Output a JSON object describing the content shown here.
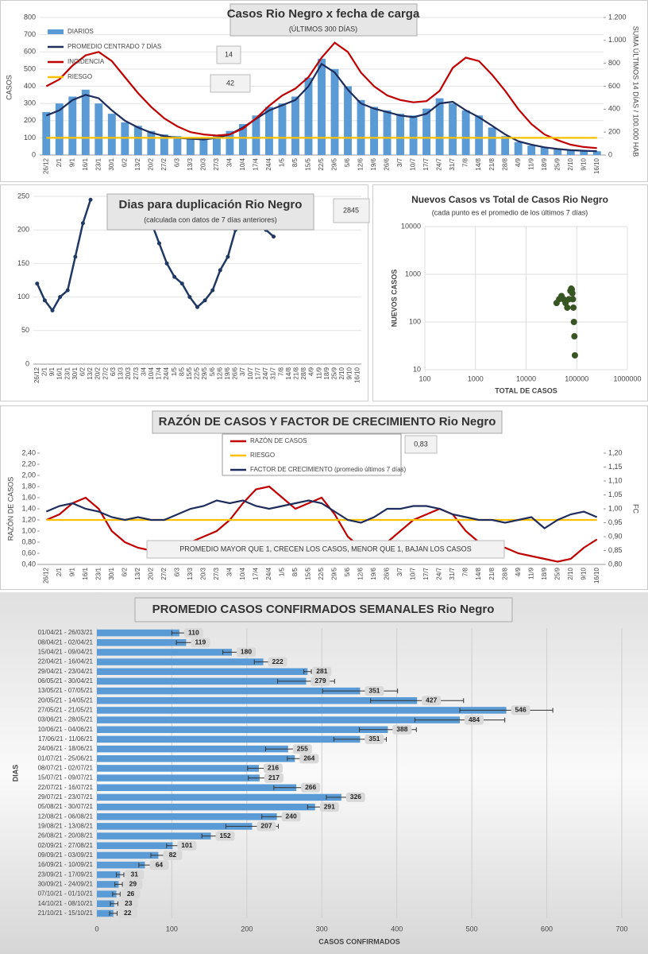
{
  "chart_data": [
    {
      "type": "combo",
      "title": "Casos Rio Negro x fecha de carga",
      "subtitle": "(ÚLTIMOS 300 DÍAS)",
      "ylabel": "CASOS",
      "y2label": "SUMA ÚLTIMOS 14 DÍAS / 100.000 HAB",
      "annotations": [
        "14",
        "42"
      ],
      "legend": "upper left",
      "grid": true,
      "categories": [
        "26/12",
        "2/1",
        "9/1",
        "16/1",
        "23/1",
        "30/1",
        "6/2",
        "13/2",
        "20/2",
        "27/2",
        "6/3",
        "13/3",
        "20/3",
        "27/3",
        "3/4",
        "10/4",
        "17/4",
        "24/4",
        "1/5",
        "8/5",
        "15/5",
        "22/5",
        "29/5",
        "5/6",
        "12/6",
        "19/6",
        "26/6",
        "3/7",
        "10/7",
        "17/7",
        "24/7",
        "31/7",
        "7/8",
        "14/8",
        "21/8",
        "28/8",
        "4/9",
        "11/9",
        "18/9",
        "25/9",
        "2/10",
        "9/10",
        "16/10"
      ],
      "ylim": [
        0,
        800
      ],
      "yticks": [
        0,
        100,
        200,
        300,
        400,
        500,
        600,
        700,
        800
      ],
      "y2lim": [
        0,
        1200
      ],
      "y2ticks": [
        0,
        200,
        400,
        600,
        800,
        {
          "value": 1000,
          "label": "1.000"
        },
        {
          "value": 1200,
          "label": "1.200"
        }
      ],
      "series": [
        {
          "name": "DIARIOS",
          "type": "bar",
          "color": "#5b9bd5",
          "values": [
            250,
            300,
            340,
            380,
            300,
            240,
            190,
            170,
            140,
            120,
            110,
            100,
            95,
            110,
            140,
            180,
            230,
            280,
            300,
            340,
            450,
            560,
            500,
            400,
            320,
            280,
            260,
            240,
            230,
            270,
            330,
            300,
            260,
            230,
            160,
            110,
            75,
            55,
            45,
            35,
            30,
            26,
            22
          ]
        },
        {
          "name": "PROMEDIO CENTRADO 7 DÍAS",
          "type": "line",
          "color": "#1f2d5c",
          "values": [
            230,
            260,
            320,
            350,
            330,
            260,
            200,
            160,
            130,
            110,
            100,
            95,
            90,
            100,
            120,
            160,
            210,
            260,
            290,
            320,
            400,
            530,
            480,
            380,
            300,
            270,
            250,
            230,
            220,
            240,
            300,
            310,
            260,
            220,
            170,
            120,
            80,
            60,
            45,
            35,
            28,
            25,
            22
          ]
        },
        {
          "name": "INCIDENCIA",
          "type": "line",
          "color": "#c00000",
          "axis": "y2",
          "values": [
            600,
            660,
            780,
            870,
            900,
            820,
            680,
            540,
            420,
            320,
            250,
            200,
            180,
            170,
            180,
            230,
            320,
            430,
            520,
            580,
            680,
            850,
            980,
            900,
            720,
            600,
            520,
            480,
            460,
            470,
            560,
            760,
            850,
            820,
            700,
            560,
            400,
            270,
            180,
            130,
            90,
            70,
            60
          ]
        },
        {
          "name": "RIESGO",
          "type": "line",
          "color": "#ffc000",
          "axis": "y2",
          "values": [
            150,
            150,
            150,
            150,
            150,
            150,
            150,
            150,
            150,
            150,
            150,
            150,
            150,
            150,
            150,
            150,
            150,
            150,
            150,
            150,
            150,
            150,
            150,
            150,
            150,
            150,
            150,
            150,
            150,
            150,
            150,
            150,
            150,
            150,
            150,
            150,
            150,
            150,
            150,
            150,
            150,
            150,
            150
          ]
        }
      ]
    },
    {
      "type": "line",
      "title": "Dias para duplicación Rio Negro",
      "subtitle": "(calculada con datos de 7 días anteriores)",
      "annotations": [
        "2845"
      ],
      "grid": true,
      "categories": [
        "26/12",
        "2/1",
        "9/1",
        "16/1",
        "23/1",
        "30/1",
        "6/2",
        "13/2",
        "20/2",
        "27/2",
        "6/3",
        "13/3",
        "20/3",
        "27/3",
        "3/4",
        "10/4",
        "17/4",
        "24/4",
        "1/5",
        "8/5",
        "15/5",
        "22/5",
        "29/5",
        "5/6",
        "12/6",
        "19/6",
        "26/6",
        "3/7",
        "10/7",
        "17/7",
        "24/7",
        "31/7",
        "7/8",
        "14/8",
        "21/8",
        "28/8",
        "4/9",
        "11/9",
        "18/9",
        "25/9",
        "2/10",
        "9/10",
        "16/10"
      ],
      "ylim": [
        0,
        250
      ],
      "yticks": [
        0,
        50,
        100,
        150,
        200,
        250
      ],
      "series": [
        {
          "name": "Dias para duplicación",
          "type": "line",
          "color": "#1f3864",
          "values": [
            120,
            95,
            80,
            100,
            110,
            160,
            210,
            245,
            null,
            null,
            null,
            null,
            null,
            null,
            null,
            210,
            180,
            150,
            130,
            120,
            100,
            85,
            95,
            110,
            140,
            160,
            200,
            230,
            null,
            null,
            200,
            190,
            null,
            null,
            null,
            null,
            null,
            null,
            null,
            null,
            null,
            null,
            null
          ]
        }
      ]
    },
    {
      "type": "scatter",
      "title": "Nuevos Casos vs Total de Casos Rio Negro",
      "subtitle": "(cada punto es el promedio de los últimos 7 días)",
      "xlabel": "TOTAL DE CASOS",
      "ylabel": "NUEVOS CASOS",
      "log": true,
      "grid": true,
      "color": "#375623",
      "xlim": [
        100,
        1000000
      ],
      "xticks": [
        100,
        1000,
        10000,
        100000,
        1000000
      ],
      "ylim": [
        10,
        10000
      ],
      "yticks": [
        10,
        100,
        1000,
        10000
      ],
      "x": [
        40000,
        45000,
        50000,
        55000,
        60000,
        65000,
        70000,
        75000,
        78000,
        80000,
        82000,
        84000,
        86000,
        88000,
        90000,
        92000
      ],
      "values": [
        250,
        300,
        350,
        300,
        250,
        200,
        300,
        450,
        500,
        480,
        400,
        300,
        200,
        100,
        50,
        20
      ]
    },
    {
      "type": "line",
      "title": "RAZÓN DE CASOS Y FACTOR DE CRECIMIENTO Rio Negro",
      "ylabel": "RAZÓN DE CASOS",
      "y2label": "FC",
      "annotations": [
        "0,83"
      ],
      "note": "PROMEDIO MAYOR QUE 1, CRECEN LOS CASOS, MENOR QUE 1, BAJAN LOS CASOS",
      "legend": "top",
      "grid": false,
      "categories": [
        "26/12",
        "2/1",
        "9/1",
        "16/1",
        "23/1",
        "30/1",
        "6/2",
        "13/2",
        "20/2",
        "27/2",
        "6/3",
        "13/3",
        "20/3",
        "27/3",
        "3/4",
        "10/4",
        "17/4",
        "24/4",
        "1/5",
        "8/5",
        "15/5",
        "22/5",
        "29/5",
        "5/6",
        "12/6",
        "19/6",
        "26/6",
        "3/7",
        "10/7",
        "17/7",
        "24/7",
        "31/7",
        "7/8",
        "14/8",
        "21/8",
        "28/8",
        "4/9",
        "11/9",
        "18/9",
        "25/9",
        "2/10",
        "9/10",
        "16/10"
      ],
      "ylim": [
        0.4,
        2.4
      ],
      "yticks": [
        {
          "value": 0.4,
          "label": "0,40"
        },
        {
          "value": 0.6,
          "label": "0,60"
        },
        {
          "value": 0.8,
          "label": "0,80"
        },
        {
          "value": 1.0,
          "label": "1,00"
        },
        {
          "value": 1.2,
          "label": "1,20"
        },
        {
          "value": 1.4,
          "label": "1,40"
        },
        {
          "value": 1.6,
          "label": "1,60"
        },
        {
          "value": 1.8,
          "label": "1,80"
        },
        {
          "value": 2.0,
          "label": "2,00"
        },
        {
          "value": 2.2,
          "label": "2,20"
        },
        {
          "value": 2.4,
          "label": "2,40"
        }
      ],
      "y2lim": [
        0.8,
        1.2
      ],
      "y2ticks": [
        {
          "value": 0.8,
          "label": "0,80"
        },
        {
          "value": 0.85,
          "label": "0,85"
        },
        {
          "value": 0.9,
          "label": "0,90"
        },
        {
          "value": 0.95,
          "label": "0,95"
        },
        {
          "value": 1.0,
          "label": "1,00"
        },
        {
          "value": 1.05,
          "label": "1,05"
        },
        {
          "value": 1.1,
          "label": "1,10"
        },
        {
          "value": 1.15,
          "label": "1,15"
        },
        {
          "value": 1.2,
          "label": "1,20"
        }
      ],
      "series": [
        {
          "name": "RAZÓN DE CASOS",
          "type": "line",
          "color": "#c00000",
          "values": [
            1.2,
            1.3,
            1.5,
            1.6,
            1.4,
            1.0,
            0.8,
            0.7,
            0.65,
            0.6,
            0.7,
            0.8,
            0.9,
            1.0,
            1.2,
            1.5,
            1.75,
            1.8,
            1.6,
            1.4,
            1.5,
            1.6,
            1.3,
            0.9,
            0.7,
            0.65,
            0.8,
            1.0,
            1.2,
            1.3,
            1.4,
            1.3,
            1.0,
            0.8,
            0.7,
            0.7,
            0.6,
            0.55,
            0.5,
            0.45,
            0.5,
            0.7,
            0.85
          ]
        },
        {
          "name": "RIESGO",
          "type": "line",
          "color": "#ffc000",
          "values": [
            1.2,
            1.2,
            1.2,
            1.2,
            1.2,
            1.2,
            1.2,
            1.2,
            1.2,
            1.2,
            1.2,
            1.2,
            1.2,
            1.2,
            1.2,
            1.2,
            1.2,
            1.2,
            1.2,
            1.2,
            1.2,
            1.2,
            1.2,
            1.2,
            1.2,
            1.2,
            1.2,
            1.2,
            1.2,
            1.2,
            1.2,
            1.2,
            1.2,
            1.2,
            1.2,
            1.2,
            1.2,
            1.2,
            1.2,
            1.2,
            1.2,
            1.2,
            1.2
          ]
        },
        {
          "name": "FACTOR DE CRECIMIENTO (promedio últimos 7 días)",
          "type": "line",
          "color": "#1f2d5c",
          "axis": "y2",
          "values": [
            0.99,
            1.01,
            1.02,
            1.0,
            0.99,
            0.97,
            0.96,
            0.97,
            0.96,
            0.96,
            0.98,
            1.0,
            1.01,
            1.03,
            1.02,
            1.03,
            1.01,
            1.0,
            1.01,
            1.02,
            1.03,
            1.02,
            0.99,
            0.96,
            0.95,
            0.97,
            1.0,
            1.0,
            1.01,
            1.01,
            1.0,
            0.98,
            0.97,
            0.96,
            0.96,
            0.95,
            0.96,
            0.97,
            0.93,
            0.96,
            0.98,
            0.99,
            0.97
          ]
        }
      ]
    },
    {
      "type": "bar",
      "orientation": "horizontal",
      "title": "PROMEDIO CASOS CONFIRMADOS SEMANALES Rio Negro",
      "xlabel": "CASOS CONFIRMADOS",
      "ylabel": "DIAS",
      "color": "#5b9bd5",
      "grid": true,
      "xlim": [
        0,
        700
      ],
      "xticks": [
        0,
        100,
        200,
        300,
        400,
        500,
        600,
        700
      ],
      "categories": [
        "01/04/21 - 26/03/21",
        "08/04/21 - 02/04/21",
        "15/04/21 - 09/04/21",
        "22/04/21 - 16/04/21",
        "29/04/21 - 23/04/21",
        "06/05/21 - 30/04/21",
        "13/05/21 - 07/05/21",
        "20/05/21 - 14/05/21",
        "27/05/21 - 21/05/21",
        "03/06/21 - 28/05/21",
        "10/06/21 - 04/06/21",
        "17/06/21 - 11/06/21",
        "24/06/21 - 18/06/21",
        "01/07/21 - 25/06/21",
        "08/07/21 - 02/07/21",
        "15/07/21 - 09/07/21",
        "22/07/21 - 16/07/21",
        "29/07/21 - 23/07/21",
        "05/08/21 - 30/07/21",
        "12/08/21 - 06/08/21",
        "19/08/21 - 13/08/21",
        "26/08/21 - 20/08/21",
        "02/09/21 - 27/08/21",
        "09/09/21 - 03/09/21",
        "16/09/21 - 10/09/21",
        "23/09/21 - 17/09/21",
        "30/09/21 - 24/09/21",
        "07/10/21 - 01/10/21",
        "14/10/21 - 08/10/21",
        "21/10/21 - 15/10/21"
      ],
      "values": [
        110,
        119,
        180,
        222,
        281,
        279,
        351,
        427,
        546,
        484,
        388,
        351,
        255,
        264,
        216,
        217,
        266,
        326,
        291,
        240,
        207,
        152,
        101,
        82,
        64,
        31,
        29,
        26,
        23,
        22
      ],
      "errors": [
        10,
        13,
        12,
        12,
        5,
        38,
        50,
        62,
        62,
        60,
        38,
        35,
        30,
        10,
        15,
        15,
        30,
        20,
        10,
        20,
        35,
        12,
        8,
        10,
        8,
        5,
        5,
        5,
        5,
        5
      ]
    }
  ]
}
